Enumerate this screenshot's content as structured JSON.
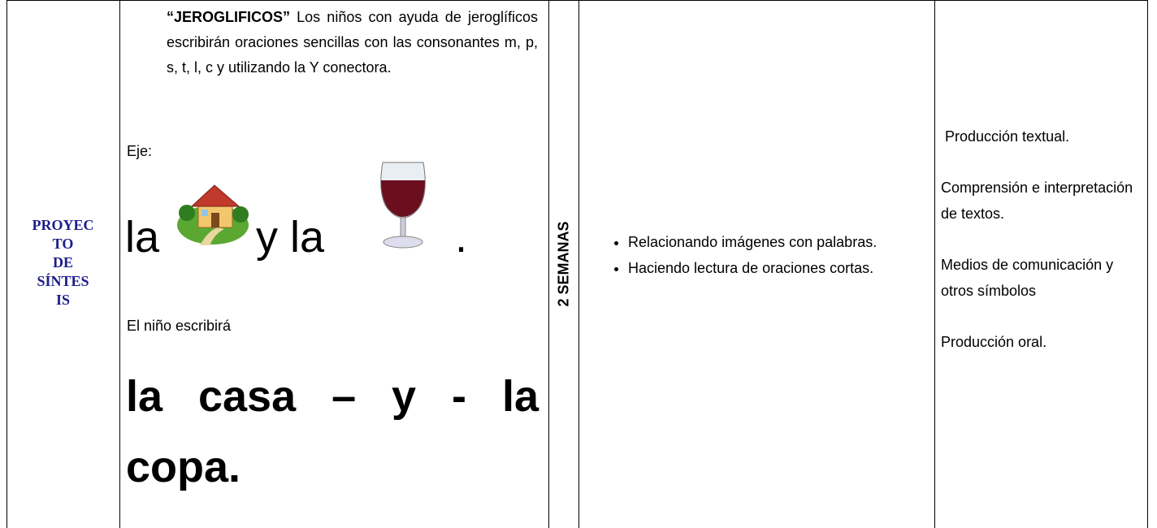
{
  "table": {
    "rows": [
      {
        "project": {
          "lines": [
            "PROYEC",
            "TO",
            "DE",
            "SÍNTES",
            "IS"
          ]
        },
        "activity": {
          "title": "“JEROGLIFICOS”",
          "description": " Los niños con ayuda de jeroglíficos escribirán oraciones sencillas con las consonantes m, p, s, t, l, c y utilizando la Y conectora.",
          "example_label": "Eje:",
          "rebus": {
            "word1": "la",
            "word2": "y la",
            "end": "."
          },
          "result_label": "El niño escribirá",
          "result": "la casa – y - la copa."
        },
        "duration": "2 SEMANAS",
        "strategies": [
          "Relacionando imágenes con palabras.",
          "Haciendo lectura de oraciones cortas."
        ],
        "skills": [
          " Producción textual.",
          "Comprensión e interpretación de textos.",
          "Medios de comunicación y otros símbolos",
          "Producción oral."
        ]
      }
    ]
  }
}
